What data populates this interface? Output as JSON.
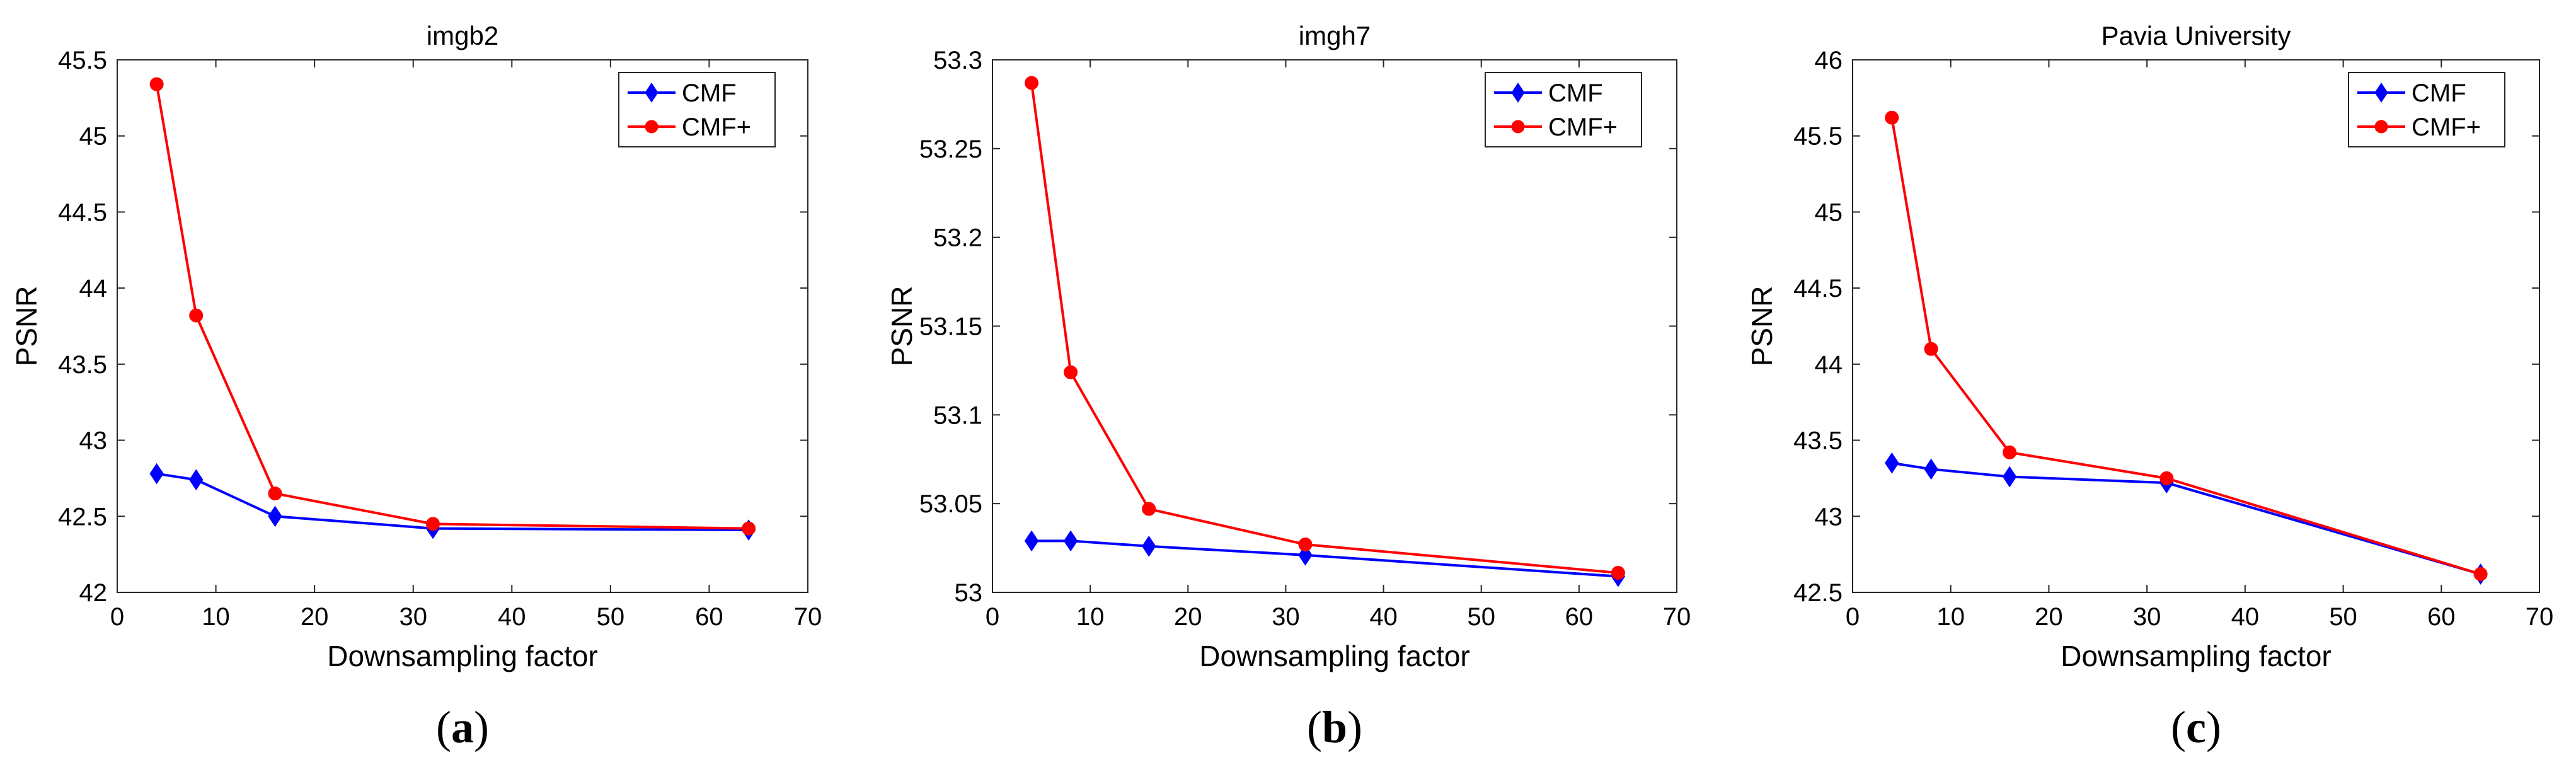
{
  "chart_data": [
    {
      "type": "line",
      "title": "imgb2",
      "xlabel": "Downsampling factor",
      "ylabel": "PSNR",
      "xlim": [
        0,
        70
      ],
      "ylim": [
        42,
        45.5
      ],
      "xticks": [
        0,
        10,
        20,
        30,
        40,
        50,
        60,
        70
      ],
      "yticks": [
        42,
        42.5,
        43,
        43.5,
        44,
        44.5,
        45,
        45.5
      ],
      "xtick_labels": [
        "0",
        "10",
        "20",
        "30",
        "40",
        "50",
        "60",
        "70"
      ],
      "ytick_labels": [
        "42",
        "42.5",
        "43",
        "43.5",
        "44",
        "44.5",
        "45",
        "45.5"
      ],
      "grid": false,
      "legend_position": "top-right",
      "x": [
        4,
        8,
        16,
        32,
        64
      ],
      "series": [
        {
          "name": "CMF",
          "color": "#0000ff",
          "marker": "diamond",
          "values": [
            42.78,
            42.74,
            42.5,
            42.42,
            42.41
          ]
        },
        {
          "name": "CMF+",
          "color": "#ff0000",
          "marker": "circle",
          "values": [
            45.34,
            43.82,
            42.65,
            42.45,
            42.42
          ]
        }
      ],
      "caption_letter": "a"
    },
    {
      "type": "line",
      "title": "imgh7",
      "xlabel": "Downsampling factor",
      "ylabel": "PSNR",
      "xlim": [
        0,
        70
      ],
      "ylim": [
        53,
        53.3
      ],
      "xticks": [
        0,
        10,
        20,
        30,
        40,
        50,
        60,
        70
      ],
      "yticks": [
        53,
        53.05,
        53.1,
        53.15,
        53.2,
        53.25,
        53.3
      ],
      "xtick_labels": [
        "0",
        "10",
        "20",
        "30",
        "40",
        "50",
        "60",
        "70"
      ],
      "ytick_labels": [
        "53",
        "53.05",
        "53.1",
        "53.15",
        "53.2",
        "53.25",
        "53.3"
      ],
      "grid": false,
      "legend_position": "top-right",
      "x": [
        4,
        8,
        16,
        32,
        64
      ],
      "series": [
        {
          "name": "CMF",
          "color": "#0000ff",
          "marker": "diamond",
          "values": [
            53.029,
            53.029,
            53.026,
            53.021,
            53.009
          ]
        },
        {
          "name": "CMF+",
          "color": "#ff0000",
          "marker": "circle",
          "values": [
            53.287,
            53.124,
            53.047,
            53.027,
            53.011
          ]
        }
      ],
      "caption_letter": "b"
    },
    {
      "type": "line",
      "title": "Pavia University",
      "xlabel": "Downsampling factor",
      "ylabel": "PSNR",
      "xlim": [
        0,
        70
      ],
      "ylim": [
        42.5,
        46
      ],
      "xticks": [
        0,
        10,
        20,
        30,
        40,
        50,
        60,
        70
      ],
      "yticks": [
        42.5,
        43,
        43.5,
        44,
        44.5,
        45,
        45.5,
        46
      ],
      "xtick_labels": [
        "0",
        "10",
        "20",
        "30",
        "40",
        "50",
        "60",
        "70"
      ],
      "ytick_labels": [
        "42.5",
        "43",
        "43.5",
        "44",
        "44.5",
        "45",
        "45.5",
        "46"
      ],
      "grid": false,
      "legend_position": "top-right",
      "x": [
        4,
        8,
        16,
        32,
        64
      ],
      "series": [
        {
          "name": "CMF",
          "color": "#0000ff",
          "marker": "diamond",
          "values": [
            43.35,
            43.31,
            43.26,
            43.22,
            42.62
          ]
        },
        {
          "name": "CMF+",
          "color": "#ff0000",
          "marker": "circle",
          "values": [
            45.62,
            44.1,
            43.42,
            43.25,
            42.62
          ]
        }
      ],
      "caption_letter": "c"
    }
  ]
}
